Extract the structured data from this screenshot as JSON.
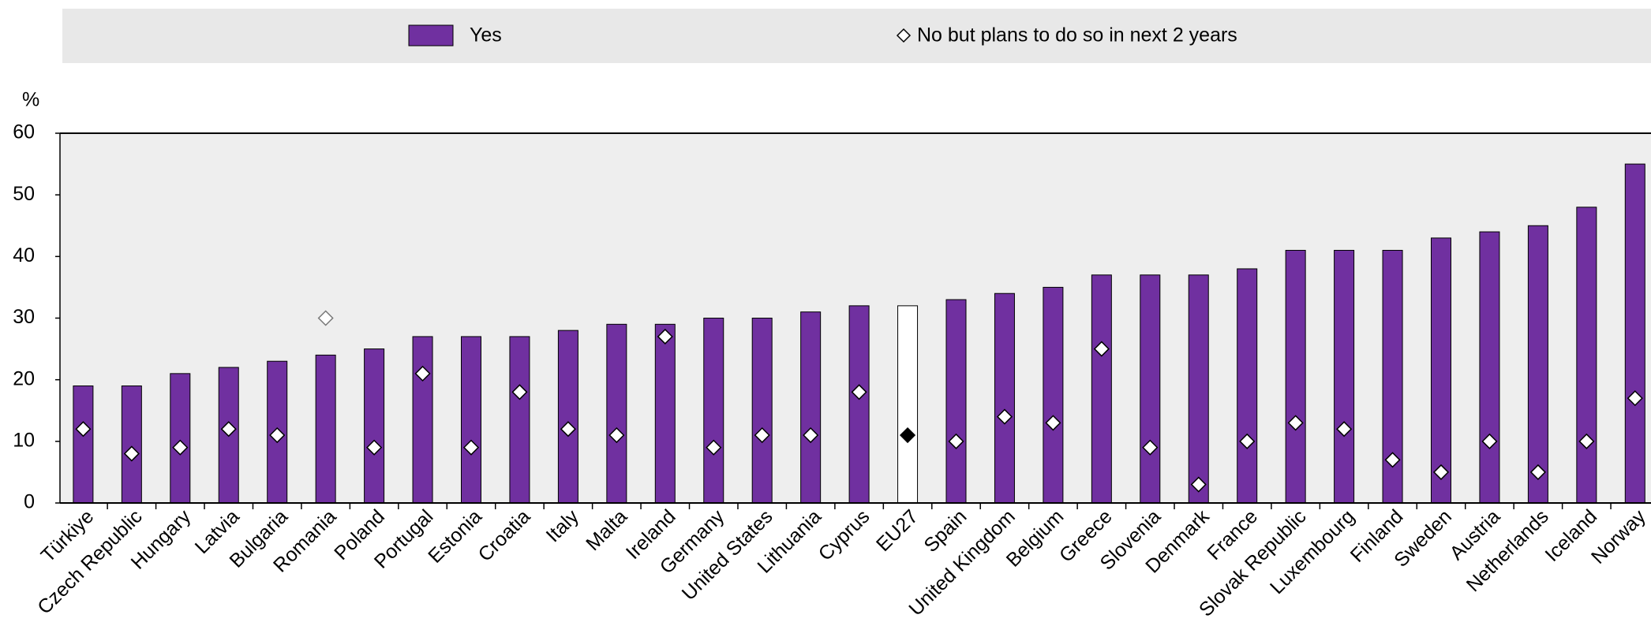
{
  "chart_data": {
    "type": "bar",
    "y_label": "%",
    "categories": [
      "Türkiye",
      "Czech Republic",
      "Hungary",
      "Latvia",
      "Bulgaria",
      "Romania",
      "Poland",
      "Portugal",
      "Estonia",
      "Croatia",
      "Italy",
      "Malta",
      "Ireland",
      "Germany",
      "United States",
      "Lithuania",
      "Cyprus",
      "EU27",
      "Spain",
      "United Kingdom",
      "Belgium",
      "Greece",
      "Slovenia",
      "Denmark",
      "France",
      "Slovak Republic",
      "Luxembourg",
      "Finland",
      "Sweden",
      "Austria",
      "Netherlands",
      "Iceland",
      "Norway"
    ],
    "series": [
      {
        "name": "Yes",
        "type": "bar",
        "color": "#7030a0",
        "colors": [
          "#7030a0",
          "#7030a0",
          "#7030a0",
          "#7030a0",
          "#7030a0",
          "#7030a0",
          "#7030a0",
          "#7030a0",
          "#7030a0",
          "#7030a0",
          "#7030a0",
          "#7030a0",
          "#7030a0",
          "#7030a0",
          "#7030a0",
          "#7030a0",
          "#7030a0",
          "#ffffff",
          "#7030a0",
          "#7030a0",
          "#7030a0",
          "#7030a0",
          "#7030a0",
          "#7030a0",
          "#7030a0",
          "#7030a0",
          "#7030a0",
          "#7030a0",
          "#7030a0",
          "#7030a0",
          "#7030a0",
          "#7030a0",
          "#7030a0"
        ],
        "values": [
          19,
          19,
          21,
          22,
          23,
          24,
          25,
          27,
          27,
          27,
          28,
          29,
          29,
          30,
          30,
          31,
          32,
          32,
          33,
          34,
          35,
          37,
          37,
          37,
          38,
          41,
          41,
          41,
          43,
          44,
          45,
          48,
          55
        ]
      },
      {
        "name": "No but plans to do so in next 2 years",
        "type": "diamond",
        "color": "#ffffff",
        "colors": [
          "#ffffff",
          "#ffffff",
          "#ffffff",
          "#ffffff",
          "#ffffff",
          "#ffffff",
          "#ffffff",
          "#ffffff",
          "#ffffff",
          "#ffffff",
          "#ffffff",
          "#ffffff",
          "#ffffff",
          "#ffffff",
          "#ffffff",
          "#ffffff",
          "#ffffff",
          "#000000",
          "#ffffff",
          "#ffffff",
          "#ffffff",
          "#ffffff",
          "#ffffff",
          "#ffffff",
          "#ffffff",
          "#ffffff",
          "#ffffff",
          "#ffffff",
          "#ffffff",
          "#ffffff",
          "#ffffff",
          "#ffffff",
          "#ffffff"
        ],
        "edge_colors": [
          "#000000",
          "#000000",
          "#000000",
          "#000000",
          "#000000",
          "#777777",
          "#000000",
          "#000000",
          "#000000",
          "#000000",
          "#000000",
          "#000000",
          "#000000",
          "#000000",
          "#000000",
          "#000000",
          "#000000",
          "#000000",
          "#000000",
          "#000000",
          "#000000",
          "#000000",
          "#000000",
          "#000000",
          "#000000",
          "#000000",
          "#000000",
          "#000000",
          "#000000",
          "#000000",
          "#000000",
          "#000000",
          "#000000"
        ],
        "values": [
          12,
          8,
          9,
          12,
          11,
          30,
          9,
          21,
          9,
          18,
          12,
          11,
          27,
          9,
          11,
          11,
          18,
          11,
          10,
          14,
          13,
          25,
          9,
          3,
          10,
          13,
          12,
          7,
          5,
          10,
          5,
          10,
          17
        ]
      }
    ],
    "ylim": [
      0,
      60
    ],
    "yticks": [
      0,
      10,
      20,
      30,
      40,
      50,
      60
    ],
    "legend": "top"
  }
}
